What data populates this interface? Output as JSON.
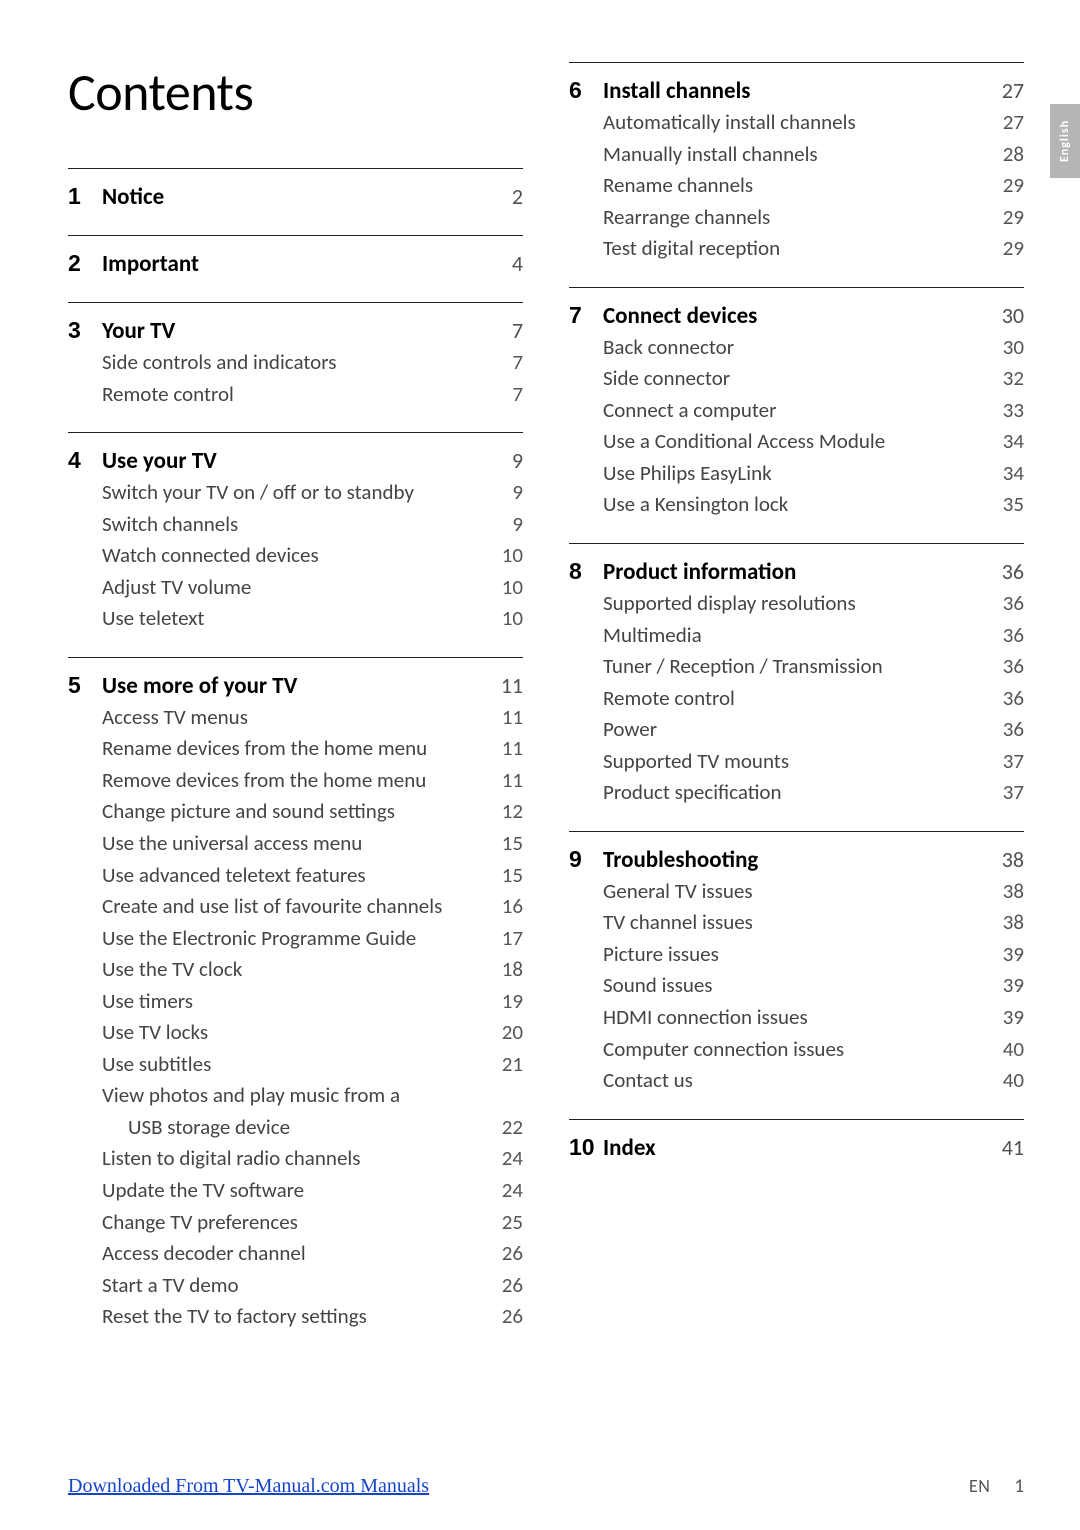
{
  "page": {
    "title": "Contents",
    "side_tab": "English",
    "footer_link": "Downloaded From TV-Manual.com Manuals",
    "footer_lang": "EN",
    "footer_page": "1"
  },
  "chapters": [
    {
      "num": "1",
      "title": "Notice",
      "page": "2",
      "entries": []
    },
    {
      "num": "2",
      "title": "Important",
      "page": "4",
      "entries": []
    },
    {
      "num": "3",
      "title": "Your TV",
      "page": "7",
      "entries": [
        {
          "text": "Side controls and indicators",
          "page": "7"
        },
        {
          "text": "Remote control",
          "page": "7"
        }
      ]
    },
    {
      "num": "4",
      "title": "Use your TV",
      "page": "9",
      "entries": [
        {
          "text": "Switch your TV on / off or to standby",
          "page": "9"
        },
        {
          "text": "Switch channels",
          "page": "9"
        },
        {
          "text": "Watch connected devices",
          "page": "10"
        },
        {
          "text": "Adjust TV volume",
          "page": "10"
        },
        {
          "text": "Use teletext",
          "page": "10"
        }
      ]
    },
    {
      "num": "5",
      "title": "Use more of your TV",
      "page": "11",
      "entries": [
        {
          "text": "Access TV menus",
          "page": "11"
        },
        {
          "text": "Rename devices from the home menu",
          "page": "11"
        },
        {
          "text": "Remove devices from the home menu",
          "page": "11"
        },
        {
          "text": "Change picture and sound settings",
          "page": "12"
        },
        {
          "text": "Use the universal access menu",
          "page": "15"
        },
        {
          "text": "Use advanced teletext features",
          "page": "15"
        },
        {
          "text": "Create and use list of favourite channels",
          "page": "16"
        },
        {
          "text": "Use the Electronic Programme Guide",
          "page": "17"
        },
        {
          "text": "Use the TV clock",
          "page": "18"
        },
        {
          "text": "Use timers",
          "page": "19"
        },
        {
          "text": "Use TV locks",
          "page": "20"
        },
        {
          "text": "Use subtitles",
          "page": "21"
        },
        {
          "text": "View photos and play music from a",
          "page": ""
        },
        {
          "text": "USB storage device",
          "page": "22",
          "indent": true
        },
        {
          "text": "Listen to digital radio channels",
          "page": "24"
        },
        {
          "text": "Update the TV software",
          "page": "24"
        },
        {
          "text": "Change TV preferences",
          "page": "25"
        },
        {
          "text": "Access decoder channel",
          "page": "26"
        },
        {
          "text": "Start a TV demo",
          "page": "26"
        },
        {
          "text": "Reset the TV to factory settings",
          "page": "26"
        }
      ]
    },
    {
      "num": "6",
      "title": "Install channels",
      "page": "27",
      "entries": [
        {
          "text": "Automatically install channels",
          "page": "27"
        },
        {
          "text": "Manually install channels",
          "page": "28"
        },
        {
          "text": "Rename channels",
          "page": "29"
        },
        {
          "text": "Rearrange channels",
          "page": "29"
        },
        {
          "text": "Test digital reception",
          "page": "29"
        }
      ]
    },
    {
      "num": "7",
      "title": "Connect devices",
      "page": "30",
      "entries": [
        {
          "text": "Back connector",
          "page": "30"
        },
        {
          "text": "Side connector",
          "page": "32"
        },
        {
          "text": "Connect a computer",
          "page": "33"
        },
        {
          "text": "Use a Conditional Access Module",
          "page": "34"
        },
        {
          "text": "Use Philips EasyLink",
          "page": "34"
        },
        {
          "text": "Use a Kensington lock",
          "page": "35"
        }
      ]
    },
    {
      "num": "8",
      "title": "Product information",
      "page": "36",
      "entries": [
        {
          "text": "Supported display resolutions",
          "page": "36"
        },
        {
          "text": "Multimedia",
          "page": "36"
        },
        {
          "text": "Tuner / Reception / Transmission",
          "page": "36"
        },
        {
          "text": "Remote control",
          "page": "36"
        },
        {
          "text": "Power",
          "page": "36"
        },
        {
          "text": "Supported TV mounts",
          "page": "37"
        },
        {
          "text": "Product specification",
          "page": "37"
        }
      ]
    },
    {
      "num": "9",
      "title": "Troubleshooting",
      "page": "38",
      "entries": [
        {
          "text": "General TV issues",
          "page": "38"
        },
        {
          "text": "TV channel issues",
          "page": "38"
        },
        {
          "text": "Picture issues",
          "page": "39"
        },
        {
          "text": "Sound issues",
          "page": "39"
        },
        {
          "text": "HDMI connection issues",
          "page": "39"
        },
        {
          "text": "Computer connection issues",
          "page": "40"
        },
        {
          "text": "Contact us",
          "page": "40"
        }
      ]
    },
    {
      "num": "10",
      "title": "Index",
      "page": "41",
      "entries": []
    }
  ],
  "split_index": 5
}
